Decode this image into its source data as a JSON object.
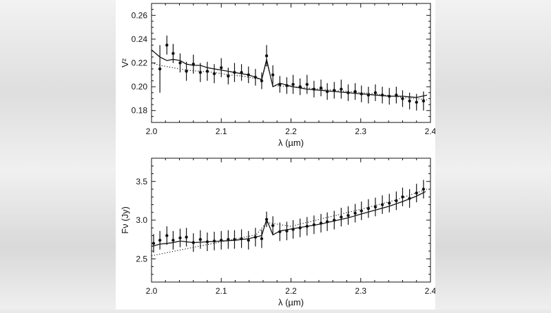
{
  "chart_data": [
    {
      "type": "line",
      "xlabel": "λ (µm)",
      "ylabel": "V²",
      "xlim": [
        2.0,
        2.4
      ],
      "ylim": [
        0.17,
        0.27
      ],
      "xticks": [
        "2.0",
        "2.1",
        "2.2",
        "2.3",
        "2.4"
      ],
      "yticks": [
        "0.18",
        "0.20",
        "0.22",
        "0.24",
        "0.26"
      ],
      "grid": false,
      "series": [
        {
          "style": "errorbar",
          "x": [
            2.012,
            2.022,
            2.031,
            2.041,
            2.05,
            2.06,
            2.07,
            2.08,
            2.09,
            2.1,
            2.11,
            2.119,
            2.129,
            2.139,
            2.149,
            2.158,
            2.165,
            2.174,
            2.184,
            2.194,
            2.203,
            2.213,
            2.223,
            2.233,
            2.243,
            2.252,
            2.262,
            2.272,
            2.282,
            2.292,
            2.301,
            2.311,
            2.321,
            2.331,
            2.341,
            2.351,
            2.36,
            2.37,
            2.38,
            2.39
          ],
          "y": [
            0.215,
            0.235,
            0.228,
            0.22,
            0.213,
            0.219,
            0.212,
            0.213,
            0.211,
            0.216,
            0.209,
            0.212,
            0.212,
            0.21,
            0.208,
            0.205,
            0.226,
            0.21,
            0.202,
            0.201,
            0.202,
            0.2,
            0.202,
            0.198,
            0.199,
            0.196,
            0.197,
            0.198,
            0.195,
            0.196,
            0.194,
            0.193,
            0.195,
            0.193,
            0.192,
            0.193,
            0.19,
            0.188,
            0.187,
            0.188
          ],
          "err": [
            0.02,
            0.008,
            0.008,
            0.008,
            0.008,
            0.008,
            0.008,
            0.008,
            0.008,
            0.008,
            0.007,
            0.008,
            0.007,
            0.007,
            0.007,
            0.007,
            0.009,
            0.008,
            0.007,
            0.007,
            0.008,
            0.007,
            0.008,
            0.007,
            0.007,
            0.007,
            0.007,
            0.008,
            0.007,
            0.007,
            0.007,
            0.007,
            0.007,
            0.007,
            0.007,
            0.007,
            0.007,
            0.007,
            0.007,
            0.008
          ]
        },
        {
          "style": "solid",
          "x": [
            2.0,
            2.012,
            2.022,
            2.031,
            2.041,
            2.05,
            2.06,
            2.07,
            2.08,
            2.09,
            2.1,
            2.11,
            2.119,
            2.129,
            2.139,
            2.149,
            2.158,
            2.165,
            2.174,
            2.184,
            2.203,
            2.223,
            2.243,
            2.262,
            2.282,
            2.301,
            2.321,
            2.341,
            2.36,
            2.38,
            2.395
          ],
          "y": [
            0.231,
            0.225,
            0.222,
            0.223,
            0.222,
            0.219,
            0.218,
            0.218,
            0.216,
            0.215,
            0.214,
            0.213,
            0.212,
            0.211,
            0.21,
            0.208,
            0.206,
            0.223,
            0.2,
            0.203,
            0.2,
            0.198,
            0.197,
            0.196,
            0.195,
            0.194,
            0.193,
            0.192,
            0.192,
            0.191,
            0.193
          ]
        },
        {
          "style": "dotted",
          "x": [
            2.0,
            2.012,
            2.031,
            2.05,
            2.07,
            2.09,
            2.11,
            2.129,
            2.149,
            2.158,
            2.165,
            2.174,
            2.203,
            2.243,
            2.282,
            2.321,
            2.36,
            2.395
          ],
          "y": [
            0.22,
            0.218,
            0.216,
            0.214,
            0.213,
            0.212,
            0.21,
            0.209,
            0.207,
            0.206,
            0.221,
            0.201,
            0.2,
            0.198,
            0.196,
            0.194,
            0.191,
            0.189
          ]
        }
      ]
    },
    {
      "type": "line",
      "xlabel": "λ (µm)",
      "ylabel": "Fν (Jy)",
      "xlim": [
        2.0,
        2.4
      ],
      "ylim": [
        2.2,
        3.8
      ],
      "xticks": [
        "2.0",
        "2.1",
        "2.2",
        "2.3",
        "2.4"
      ],
      "yticks": [
        "2.5",
        "3.0",
        "3.5"
      ],
      "grid": false,
      "series": [
        {
          "style": "errorbar",
          "x": [
            2.003,
            2.012,
            2.022,
            2.031,
            2.041,
            2.05,
            2.06,
            2.07,
            2.08,
            2.09,
            2.1,
            2.11,
            2.119,
            2.129,
            2.139,
            2.149,
            2.158,
            2.165,
            2.174,
            2.184,
            2.194,
            2.203,
            2.213,
            2.223,
            2.233,
            2.243,
            2.252,
            2.262,
            2.272,
            2.282,
            2.292,
            2.301,
            2.311,
            2.321,
            2.331,
            2.341,
            2.351,
            2.36,
            2.37,
            2.38,
            2.39
          ],
          "y": [
            2.7,
            2.74,
            2.8,
            2.74,
            2.77,
            2.78,
            2.71,
            2.75,
            2.72,
            2.73,
            2.74,
            2.75,
            2.75,
            2.76,
            2.74,
            2.78,
            2.76,
            3.01,
            2.93,
            2.85,
            2.86,
            2.88,
            2.9,
            2.92,
            2.94,
            2.96,
            2.98,
            3.0,
            3.04,
            3.06,
            3.09,
            3.12,
            3.15,
            3.17,
            3.2,
            3.22,
            3.25,
            3.3,
            3.28,
            3.35,
            3.4
          ],
          "err": [
            0.12,
            0.12,
            0.12,
            0.12,
            0.12,
            0.12,
            0.12,
            0.12,
            0.12,
            0.12,
            0.12,
            0.12,
            0.12,
            0.12,
            0.12,
            0.12,
            0.12,
            0.1,
            0.12,
            0.12,
            0.12,
            0.12,
            0.12,
            0.12,
            0.12,
            0.12,
            0.12,
            0.12,
            0.12,
            0.12,
            0.12,
            0.12,
            0.12,
            0.12,
            0.12,
            0.12,
            0.12,
            0.12,
            0.12,
            0.12,
            0.12
          ]
        },
        {
          "style": "solid",
          "x": [
            2.0,
            2.012,
            2.022,
            2.031,
            2.041,
            2.05,
            2.06,
            2.08,
            2.1,
            2.119,
            2.139,
            2.158,
            2.165,
            2.174,
            2.184,
            2.203,
            2.223,
            2.243,
            2.262,
            2.282,
            2.301,
            2.321,
            2.341,
            2.36,
            2.38,
            2.393
          ],
          "y": [
            2.66,
            2.69,
            2.7,
            2.71,
            2.73,
            2.72,
            2.71,
            2.72,
            2.73,
            2.74,
            2.76,
            2.8,
            3.01,
            2.81,
            2.86,
            2.89,
            2.92,
            2.95,
            2.99,
            3.03,
            3.08,
            3.13,
            3.18,
            3.24,
            3.31,
            3.37
          ]
        },
        {
          "style": "dotted",
          "x": [
            2.0,
            2.05,
            2.1,
            2.15,
            2.165,
            2.2,
            2.25,
            2.3,
            2.35,
            2.395
          ],
          "y": [
            2.54,
            2.63,
            2.72,
            2.81,
            2.97,
            2.92,
            3.03,
            3.14,
            3.26,
            3.4
          ]
        }
      ]
    }
  ]
}
